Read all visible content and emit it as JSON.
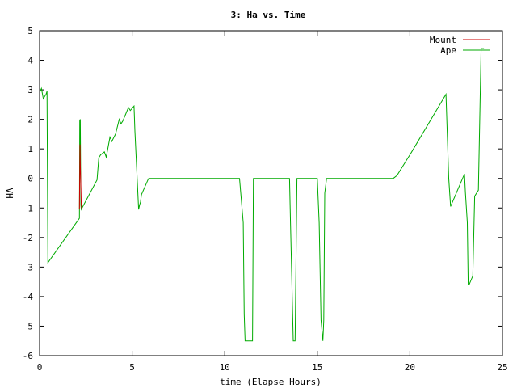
{
  "chart_data": {
    "type": "line",
    "title": "3: Ha vs. Time",
    "xlabel": "time (Elapse Hours)",
    "ylabel": "HA",
    "xlim": [
      0,
      25
    ],
    "ylim": [
      -6,
      5
    ],
    "xticks": [
      "0",
      "5",
      "10",
      "15",
      "20",
      "25"
    ],
    "yticks": [
      "-6",
      "-5",
      "-4",
      "-3",
      "-2",
      "-1",
      "0",
      "1",
      "2",
      "3",
      "4",
      "5"
    ],
    "grid": false,
    "legend_position": "top-right",
    "series": [
      {
        "name": "Mount",
        "color": "#cc0000",
        "x": [
          2.15,
          2.18,
          2.2,
          2.23,
          2.25,
          2.28
        ],
        "y": [
          -1.05,
          1.15,
          0.5,
          -0.3,
          -0.9,
          -1.05
        ]
      },
      {
        "name": "Ape",
        "color": "#00aa00",
        "x": [
          0,
          0.1,
          0.2,
          0.35,
          0.4,
          0.45,
          2.15,
          2.17,
          2.2,
          2.23,
          2.25,
          3.1,
          3.2,
          3.3,
          3.5,
          3.6,
          3.8,
          3.9,
          4.1,
          4.3,
          4.4,
          4.5,
          4.6,
          4.8,
          4.9,
          5.1,
          5.15,
          5.35,
          5.4,
          5.45,
          5.5,
          5.85,
          5.9,
          10.8,
          11.0,
          11.05,
          11.1,
          11.3,
          11.5,
          11.55,
          13.5,
          13.55,
          13.7,
          13.8,
          13.9,
          14.0,
          15.0,
          15.1,
          15.2,
          15.3,
          15.35,
          15.4,
          15.5,
          19.1,
          19.3,
          20.1,
          21.95,
          22.1,
          22.2,
          22.95,
          23.0,
          23.1,
          23.15,
          23.2,
          23.4,
          23.5,
          23.7,
          23.85,
          24.0
        ],
        "y": [
          2.9,
          3.05,
          2.7,
          2.85,
          2.95,
          -2.85,
          -1.35,
          1.95,
          2.0,
          -0.9,
          -1.05,
          -0.05,
          0.7,
          0.8,
          0.9,
          0.72,
          1.4,
          1.25,
          1.5,
          2.0,
          1.85,
          1.95,
          2.1,
          2.4,
          2.3,
          2.45,
          1.6,
          -1.05,
          -0.9,
          -0.8,
          -0.55,
          -0.05,
          0.0,
          0.0,
          -1.5,
          -4.6,
          -5.5,
          -5.5,
          -5.5,
          0.0,
          0.0,
          -1.5,
          -5.5,
          -5.5,
          0.0,
          0.0,
          0.0,
          -1.5,
          -4.8,
          -5.5,
          -4.8,
          -0.5,
          0.0,
          0.0,
          0.1,
          0.9,
          2.85,
          0.0,
          -0.95,
          0.15,
          -0.5,
          -1.5,
          -3.6,
          -3.6,
          -3.3,
          -0.6,
          -0.4,
          4.4,
          4.4
        ]
      }
    ]
  }
}
